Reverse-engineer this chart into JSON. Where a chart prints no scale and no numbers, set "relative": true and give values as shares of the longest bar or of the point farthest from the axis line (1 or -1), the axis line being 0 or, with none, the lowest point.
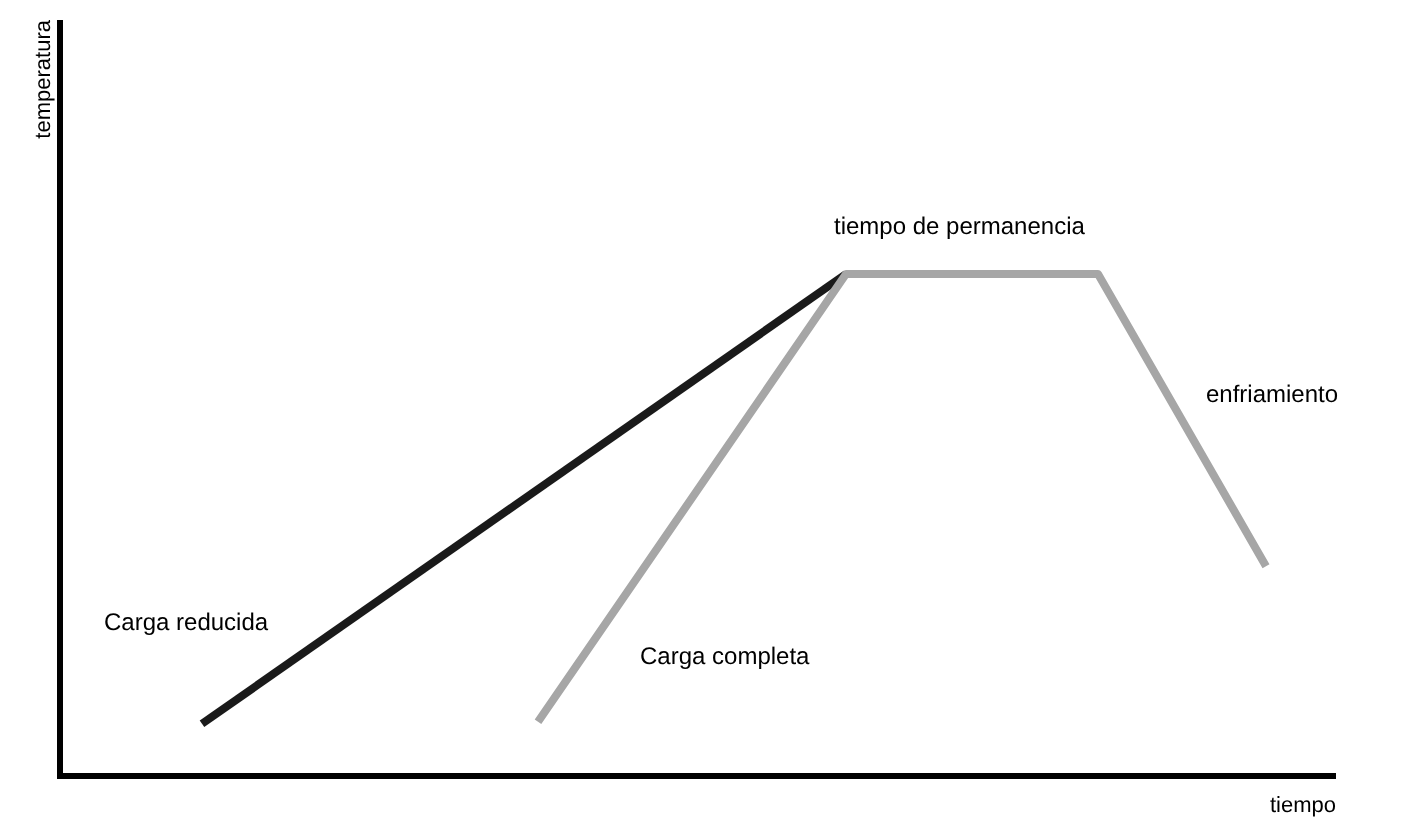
{
  "chart_data": {
    "type": "line",
    "relative": true,
    "xlabel": "tiempo",
    "marker": "none",
    "line_style": "solid",
    "categories": [
      null,
      null,
      null,
      null,
      null,
      null,
      null,
      null,
      null,
      null,
      null,
      null,
      null,
      null,
      null,
      null,
      null,
      null,
      null,
      null,
      null,
      null,
      null,
      null,
      null,
      null,
      null,
      null,
      null,
      null,
      null,
      null,
      null,
      null,
      null,
      null,
      null,
      null,
      null,
      null,
      null,
      null,
      null,
      null,
      null,
      null
    ],
    "series": [
      {
        "name": "Carga reducida",
        "color": "#1a1a1a",
        "values": [
          null,
          null,
          null,
          null,
          null,
          0.104,
          null,
          null,
          null,
          null,
          null,
          null,
          null,
          null,
          null,
          null,
          null,
          null,
          null,
          null,
          null,
          null,
          null,
          null,
          null,
          null,
          null,
          null,
          1,
          null,
          null,
          null,
          null,
          null,
          null,
          null,
          null,
          null,
          null,
          null,
          null,
          null,
          null,
          null,
          null,
          null
        ]
      },
      {
        "name": "Carga completa",
        "color": "#a6a6a6",
        "values": [
          null,
          null,
          null,
          null,
          null,
          null,
          null,
          null,
          null,
          null,
          null,
          null,
          null,
          null,
          null,
          null,
          null,
          0.108,
          null,
          null,
          null,
          null,
          null,
          null,
          null,
          null,
          null,
          null,
          1,
          null,
          null,
          null,
          null,
          null,
          null,
          null,
          null,
          1,
          null,
          null,
          null,
          null,
          null,
          0.418,
          null,
          null
        ]
      }
    ],
    "annotations": [
      "tiempo de permanencia",
      "enfriamiento",
      "temperatura"
    ]
  }
}
